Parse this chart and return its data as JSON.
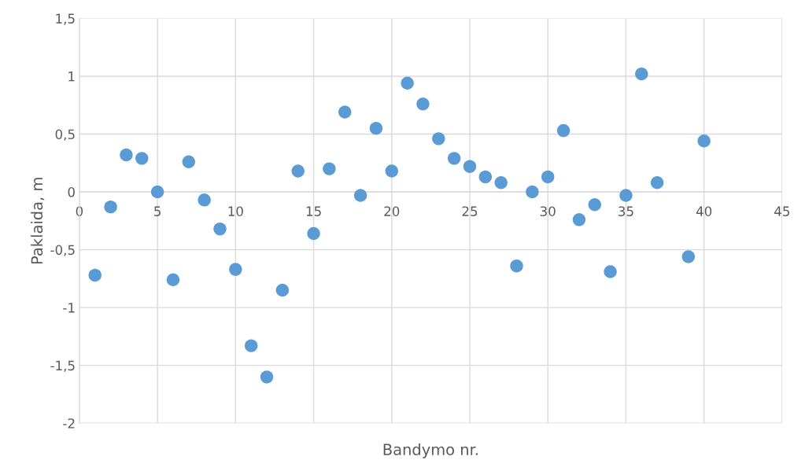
{
  "chart_data": {
    "type": "scatter",
    "xlabel": "Bandymo nr.",
    "ylabel": "Paklaida, m",
    "x": [
      1,
      2,
      3,
      4,
      5,
      6,
      7,
      8,
      9,
      10,
      11,
      12,
      13,
      14,
      15,
      16,
      17,
      18,
      19,
      20,
      21,
      22,
      23,
      24,
      25,
      26,
      27,
      28,
      29,
      30,
      31,
      32,
      33,
      34,
      35,
      36,
      37,
      39,
      40
    ],
    "series": [
      {
        "color": "#5b9bd5",
        "values": [
          -0.72,
          -0.13,
          0.32,
          0.29,
          0,
          -0.76,
          0.26,
          -0.07,
          -0.32,
          -0.67,
          -1.33,
          -1.6,
          -0.85,
          0.18,
          -0.36,
          0.2,
          0.69,
          -0.03,
          0.55,
          0.18,
          0.94,
          0.76,
          0.46,
          0.29,
          0.22,
          0.13,
          0.08,
          -0.64,
          0,
          0.13,
          0.53,
          -0.24,
          -0.11,
          -0.69,
          -0.03,
          1.02,
          0.08,
          -0.56,
          0.44
        ]
      }
    ],
    "xlim": [
      0,
      45
    ],
    "xticks": [
      0,
      5,
      10,
      15,
      20,
      25,
      30,
      35,
      40,
      45
    ],
    "ylim": [
      -2,
      1.5
    ],
    "yticks": [
      {
        "value": -2,
        "label": "-2"
      },
      {
        "value": -1.5,
        "label": "-1,5"
      },
      {
        "value": -1,
        "label": "-1"
      },
      {
        "value": -0.5,
        "label": "-0,5"
      },
      {
        "value": 0,
        "label": "0"
      },
      {
        "value": 0.5,
        "label": "0,5"
      },
      {
        "value": 1,
        "label": "1"
      },
      {
        "value": 1.5,
        "label": "1,5"
      }
    ],
    "grid": true,
    "marker": "circle",
    "legend": false
  }
}
